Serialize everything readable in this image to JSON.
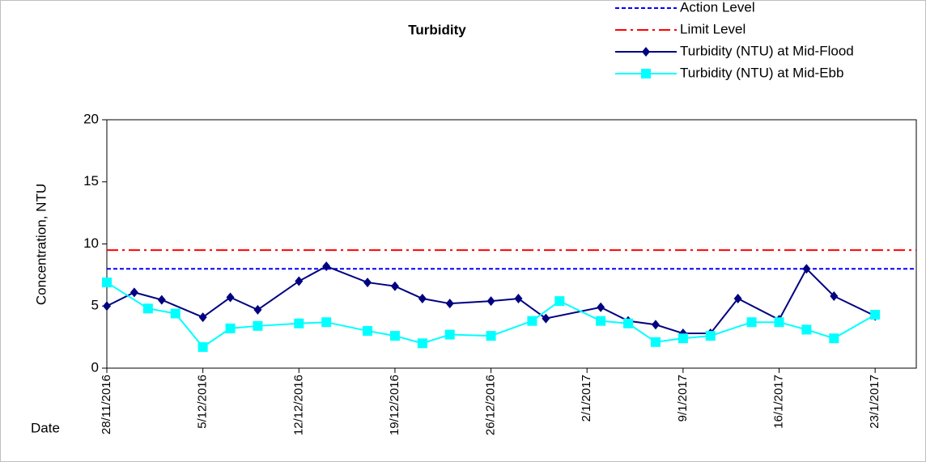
{
  "chart_data": {
    "type": "line",
    "title": "Turbidity",
    "y_label": "Concentration, NTU",
    "x_label": "Date",
    "xlim": [
      "2016-11-28",
      "2017-01-26"
    ],
    "xticks": [
      {
        "value": "2016-11-28",
        "label": "28/11/2016"
      },
      {
        "value": "2016-12-05",
        "label": "5/12/2016"
      },
      {
        "value": "2016-12-12",
        "label": "12/12/2016"
      },
      {
        "value": "2016-12-19",
        "label": "19/12/2016"
      },
      {
        "value": "2016-12-26",
        "label": "26/12/2016"
      },
      {
        "value": "2017-01-02",
        "label": "2/1/2017"
      },
      {
        "value": "2017-01-09",
        "label": "9/1/2017"
      },
      {
        "value": "2017-01-16",
        "label": "16/1/2017"
      },
      {
        "value": "2017-01-23",
        "label": "23/1/2017"
      }
    ],
    "ylim": [
      0,
      20
    ],
    "yticks": [
      0,
      5,
      10,
      15,
      20
    ],
    "levels": [
      {
        "name": "Action Level",
        "color": "#0000ff",
        "value": 8,
        "dash": "dashed"
      },
      {
        "name": "Limit Level",
        "color": "#ff0000",
        "value": 9.5,
        "dash": "dashdot"
      }
    ],
    "series": [
      {
        "name": "Turbidity (NTU) at Mid-Flood",
        "color": "#000080",
        "marker": "diamond",
        "x": [
          "2016-11-28",
          "2016-11-30",
          "2016-12-02",
          "2016-12-05",
          "2016-12-07",
          "2016-12-09",
          "2016-12-12",
          "2016-12-14",
          "2016-12-17",
          "2016-12-19",
          "2016-12-21",
          "2016-12-23",
          "2016-12-26",
          "2016-12-28",
          "2016-12-30",
          "2017-01-03",
          "2017-01-05",
          "2017-01-07",
          "2017-01-09",
          "2017-01-11",
          "2017-01-13",
          "2017-01-16",
          "2017-01-18",
          "2017-01-20",
          "2017-01-23"
        ],
        "values": [
          5.0,
          6.1,
          5.5,
          4.1,
          5.7,
          4.7,
          7.0,
          8.2,
          6.9,
          6.6,
          5.6,
          5.2,
          5.4,
          5.6,
          4.0,
          4.9,
          3.8,
          3.5,
          2.8,
          2.8,
          5.6,
          3.9,
          8.0,
          5.8,
          4.2
        ]
      },
      {
        "name": "Turbidity (NTU) at Mid-Ebb",
        "color": "#00ffff",
        "marker": "square",
        "x": [
          "2016-11-28",
          "2016-12-01",
          "2016-12-03",
          "2016-12-05",
          "2016-12-07",
          "2016-12-09",
          "2016-12-12",
          "2016-12-14",
          "2016-12-17",
          "2016-12-19",
          "2016-12-21",
          "2016-12-23",
          "2016-12-26",
          "2016-12-29",
          "2016-12-31",
          "2017-01-03",
          "2017-01-05",
          "2017-01-07",
          "2017-01-09",
          "2017-01-11",
          "2017-01-14",
          "2017-01-16",
          "2017-01-18",
          "2017-01-20",
          "2017-01-23"
        ],
        "values": [
          6.9,
          4.8,
          4.4,
          1.7,
          3.2,
          3.4,
          3.6,
          3.7,
          3.0,
          2.6,
          2.0,
          2.7,
          2.6,
          3.8,
          5.4,
          3.8,
          3.6,
          2.1,
          2.4,
          2.6,
          3.7,
          3.7,
          3.1,
          2.4,
          4.3
        ]
      }
    ]
  }
}
